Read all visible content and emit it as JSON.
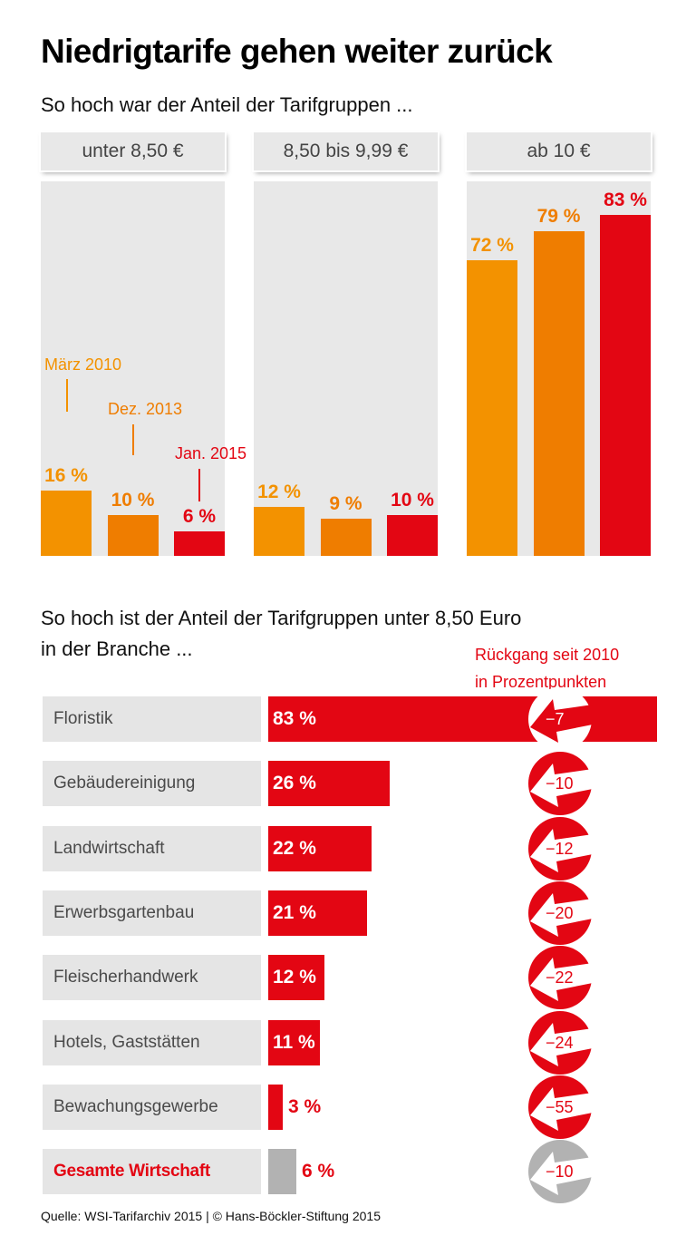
{
  "title": "Niedrigtarife gehen weiter zurück",
  "subtitle_top": "So hoch war der Anteil der Tarifgruppen ...",
  "subtitle_bottom_line1": "So hoch ist der Anteil der Tarifgruppen unter 8,50 Euro",
  "subtitle_bottom_line2": "in der Branche ...",
  "decline_title_line1": "Rückgang seit 2010",
  "decline_title_line2": "in Prozentpunkten",
  "source": "Quelle: WSI-Tarifarchiv 2015 | © Hans-Böckler-Stiftung 2015",
  "colors": {
    "march_2010": "#f39200",
    "dec_2013": "#ef7d00",
    "jan_2015": "#e30613",
    "panel_bg": "#e8e8e8",
    "total_bar": "#b2b2b2"
  },
  "chart_data": [
    {
      "type": "bar",
      "title": "So hoch war der Anteil der Tarifgruppen ...",
      "categories": [
        "unter 8,50 €",
        "8,50 bis 9,99 €",
        "ab 10 €"
      ],
      "series": [
        {
          "name": "März 2010",
          "values": [
            16,
            12,
            72
          ],
          "labels": [
            "16 %",
            "12 %",
            "72 %"
          ]
        },
        {
          "name": "Dez. 2013",
          "values": [
            10,
            9,
            79
          ],
          "labels": [
            "10 %",
            "9 %",
            "79 %"
          ]
        },
        {
          "name": "Jan. 2015",
          "values": [
            6,
            10,
            83
          ],
          "labels": [
            "6 %",
            "10 %",
            "83 %"
          ]
        }
      ],
      "unit": "%",
      "ylim": [
        0,
        100
      ]
    },
    {
      "type": "bar",
      "orientation": "horizontal",
      "title": "So hoch ist der Anteil der Tarifgruppen unter 8,50 Euro in der Branche ...",
      "categories": [
        "Floristik",
        "Gebäudereinigung",
        "Landwirtschaft",
        "Erwerbsgartenbau",
        "Fleischerhandwerk",
        "Hotels, Gaststätten",
        "Bewachungsgewerbe",
        "Gesamte Wirtschaft"
      ],
      "values": [
        83,
        26,
        22,
        21,
        12,
        11,
        3,
        6
      ],
      "value_labels": [
        "83 %",
        "26 %",
        "22 %",
        "21 %",
        "12 %",
        "11 %",
        "3 %",
        "6 %"
      ],
      "decline_since_2010": [
        -7,
        -10,
        -12,
        -20,
        -22,
        -24,
        -55,
        -10
      ],
      "decline_labels": [
        "−7",
        "−10",
        "−12",
        "−20",
        "−22",
        "−24",
        "−55",
        "−10"
      ],
      "decline_title": "Rückgang seit 2010 in Prozentpunkten",
      "unit": "%"
    }
  ]
}
